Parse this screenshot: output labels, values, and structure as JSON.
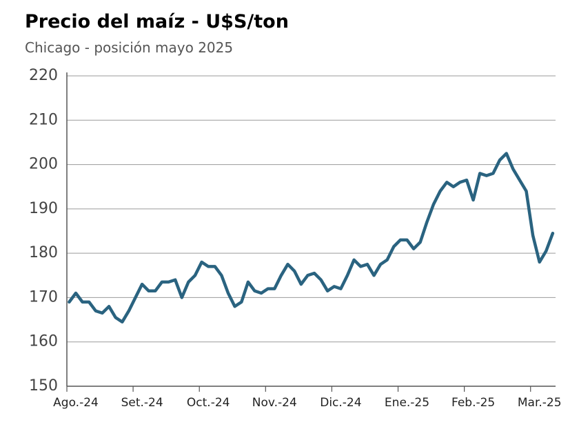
{
  "chart_data": {
    "type": "line",
    "title": "Precio del maíz - U$S/ton",
    "subtitle": "Chicago - posición mayo 2025",
    "categories": [
      null,
      "Ago.-24",
      null,
      null,
      null,
      null,
      null,
      null,
      null,
      null,
      null,
      "Set.-24",
      null,
      null,
      null,
      null,
      null,
      null,
      null,
      null,
      null,
      "Oct.-24",
      null,
      null,
      null,
      null,
      null,
      null,
      null,
      null,
      null,
      "Nov.-24",
      null,
      null,
      null,
      null,
      null,
      null,
      null,
      null,
      null,
      "Dic.-24",
      null,
      null,
      null,
      null,
      null,
      null,
      null,
      null,
      null,
      "Ene.-25",
      null,
      null,
      null,
      null,
      null,
      null,
      null,
      null,
      null,
      "Feb.-25",
      null,
      null,
      null,
      null,
      null,
      null,
      null,
      null,
      null,
      "Mar.-25",
      null,
      null
    ],
    "values": [
      169,
      171,
      169,
      169,
      167,
      166.5,
      168,
      165.5,
      164.5,
      167,
      170,
      173,
      171.5,
      171.5,
      173.5,
      173.5,
      174,
      170,
      173.5,
      175,
      178,
      177,
      177,
      175,
      171,
      168,
      169,
      173.5,
      171.5,
      171,
      172,
      172,
      175,
      177.5,
      176,
      173,
      175,
      175.5,
      174,
      171.5,
      172.5,
      172,
      175,
      178.5,
      177,
      177.5,
      175,
      177.5,
      178.5,
      181.5,
      183,
      183,
      181,
      182.5,
      187,
      191,
      194,
      196,
      195,
      196,
      196.5,
      192,
      198,
      197.5,
      198,
      201,
      202.5,
      199,
      196.5,
      194,
      184,
      178,
      180.5,
      184.5
    ],
    "color": "#2a6380",
    "ylim": [
      150,
      220
    ],
    "yticks": [
      150,
      160,
      170,
      180,
      190,
      200,
      210,
      220
    ],
    "grid": true
  }
}
